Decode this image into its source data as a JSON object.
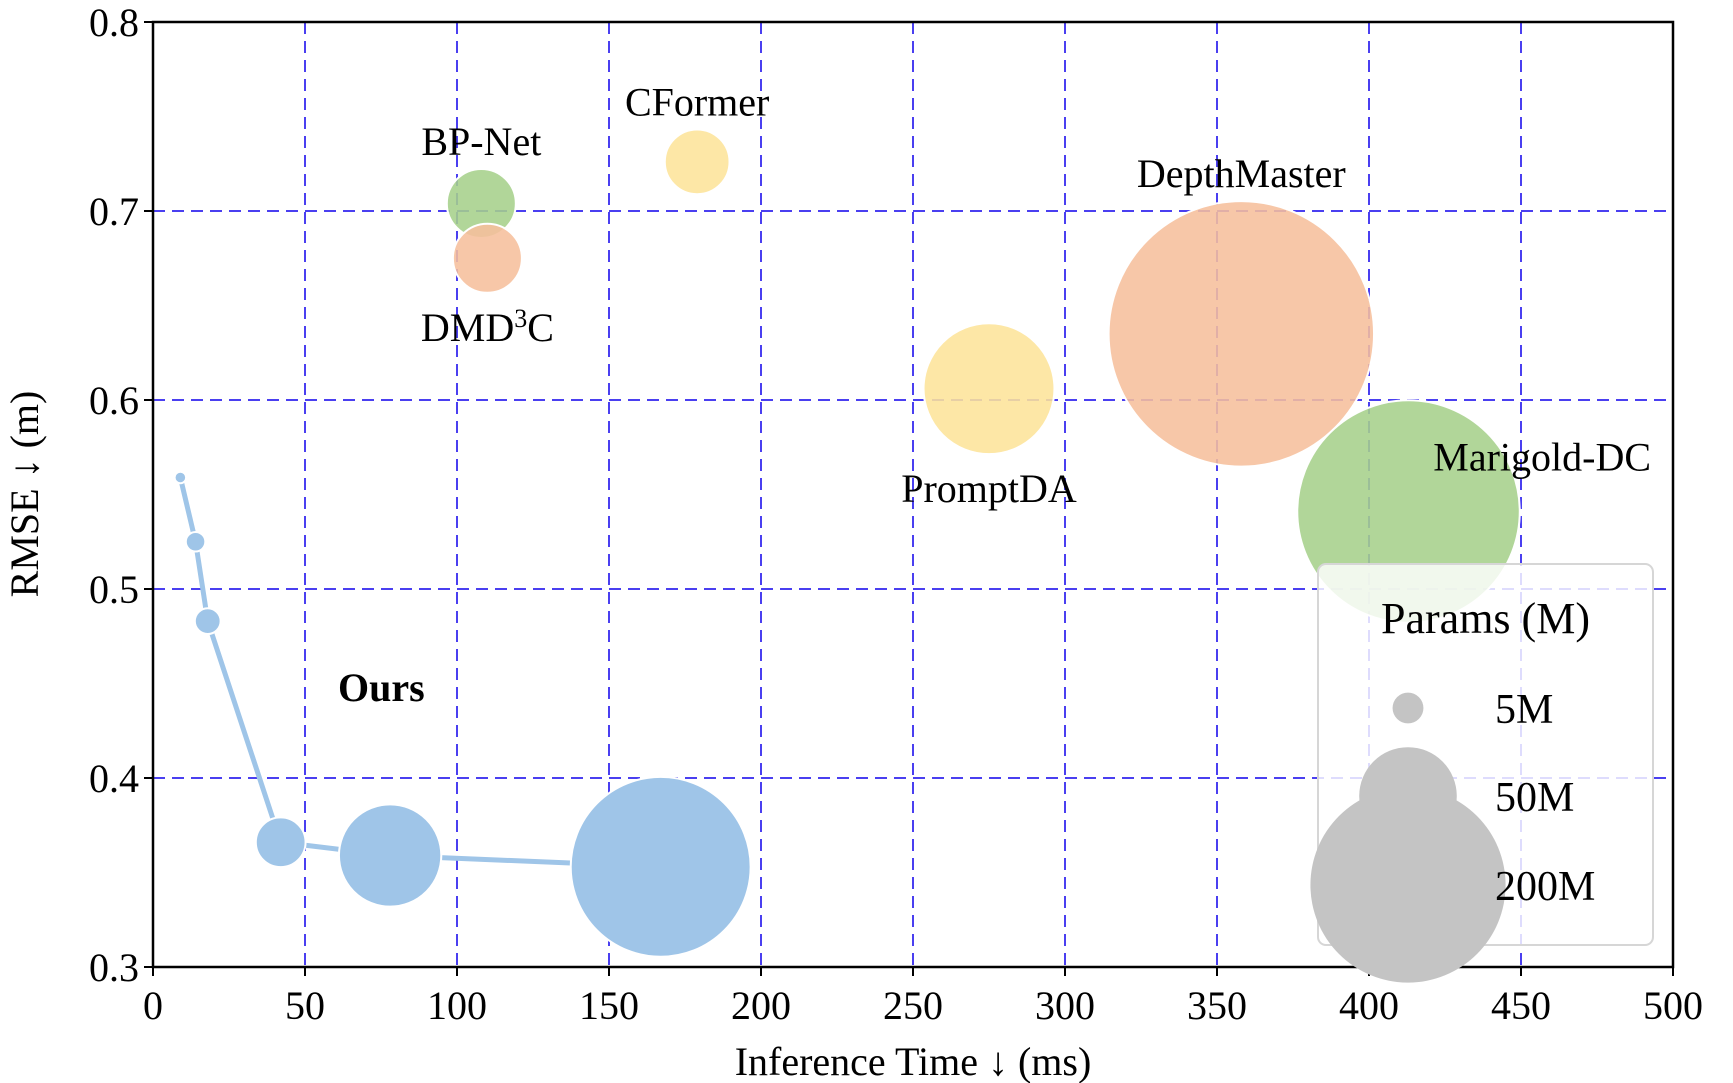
{
  "chart_data": {
    "type": "scatter",
    "xlabel": "Inference Time ↓ (ms)",
    "ylabel": "RMSE ↓ (m)",
    "xlim": [
      0,
      500
    ],
    "ylim": [
      0.3,
      0.8
    ],
    "xticks": [
      "0",
      "50",
      "100",
      "150",
      "200",
      "250",
      "300",
      "350",
      "400",
      "450",
      "500"
    ],
    "yticks": [
      "0.3",
      "0.4",
      "0.5",
      "0.6",
      "0.7",
      "0.8"
    ],
    "grid": true,
    "colors": {
      "green": "#a6d08b",
      "orange": "#f6bf9c",
      "yellow": "#fde49a",
      "blue": "#9fc5e8",
      "legend_gray": "#c4c4c4",
      "grid": "#4a3ff0"
    },
    "points": [
      {
        "label": "BP-Net",
        "x": 108,
        "y": 0.704,
        "params": 25,
        "color": "#a6d08b",
        "label_pos": "above"
      },
      {
        "label": "CFormer",
        "x": 179,
        "y": 0.726,
        "params": 22,
        "color": "#fde49a",
        "label_pos": "above"
      },
      {
        "label": "DMD",
        "label_sup": "3",
        "label_suffix": "C",
        "x": 110,
        "y": 0.675,
        "params": 25,
        "color": "#f6bf9c",
        "label_pos": "below"
      },
      {
        "label": "PromptDA",
        "x": 275,
        "y": 0.606,
        "params": 90,
        "color": "#fde49a",
        "label_pos": "below"
      },
      {
        "label": "DepthMaster",
        "x": 358,
        "y": 0.635,
        "params": 370,
        "color": "#f6bf9c",
        "label_pos": "above"
      },
      {
        "label": "Marigold-DC",
        "x": 413,
        "y": 0.541,
        "params": 260,
        "color": "#a6d08b",
        "label_pos": "right"
      }
    ],
    "ours": {
      "label": "Ours",
      "color": "#9fc5e8",
      "points": [
        {
          "x": 9,
          "y": 0.559,
          "params": 0.7
        },
        {
          "x": 14,
          "y": 0.525,
          "params": 2
        },
        {
          "x": 18,
          "y": 0.483,
          "params": 3.5
        },
        {
          "x": 42,
          "y": 0.366,
          "params": 13
        },
        {
          "x": 78,
          "y": 0.359,
          "params": 55
        },
        {
          "x": 167,
          "y": 0.353,
          "params": 170
        }
      ]
    },
    "legend": {
      "title": "Params (M)",
      "position": "bottom-right",
      "entries": [
        {
          "label": "5M",
          "params": 5
        },
        {
          "label": "50M",
          "params": 50
        },
        {
          "label": "200M",
          "params": 200
        }
      ]
    }
  }
}
